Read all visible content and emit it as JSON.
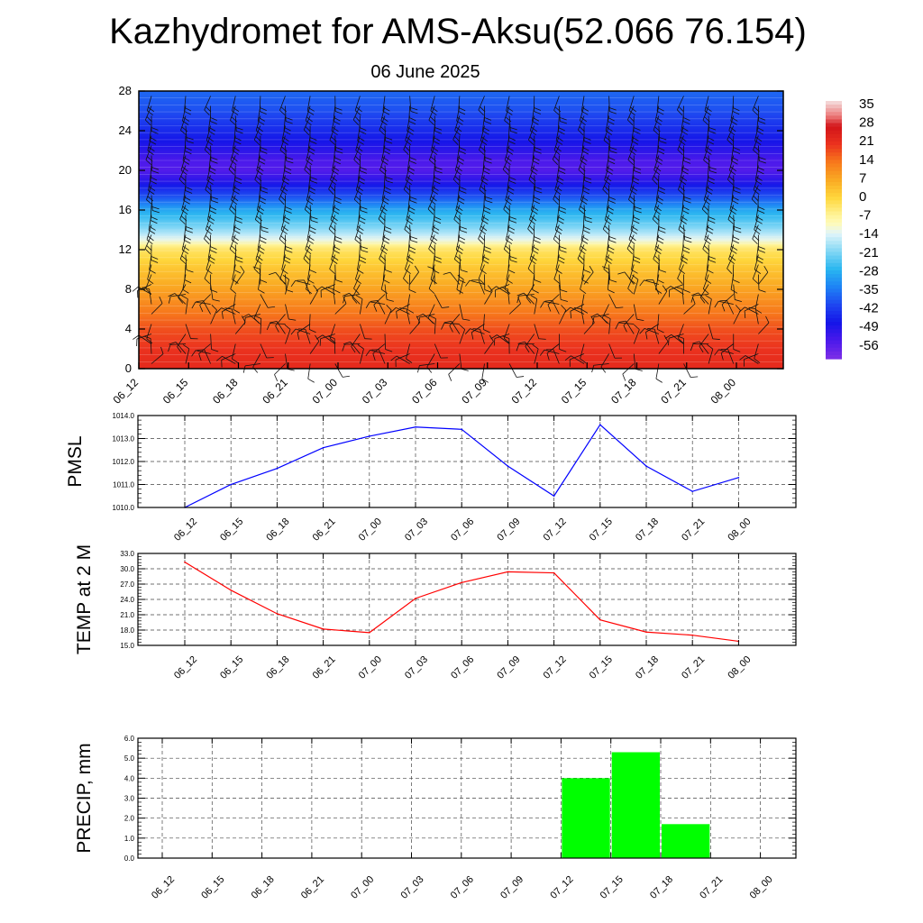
{
  "page": {
    "title": "Kazhydromet for AMS-Aksu(52.066 76.154)",
    "subtitle": "06 June 2025"
  },
  "chart_data": [
    {
      "type": "heatmap",
      "description": "Time-height temperature cross-section (filled contours) with wind barbs",
      "x_ticks": [
        "06_12",
        "06_15",
        "06_18",
        "06_21",
        "07_00",
        "07_03",
        "07_06",
        "07_09",
        "07_12",
        "07_15",
        "07_18",
        "07_21",
        "08_00"
      ],
      "y_ticks": [
        0,
        4,
        8,
        12,
        16,
        20,
        24,
        28
      ],
      "ylim": [
        0,
        28
      ],
      "colorbar_labels": [
        35,
        28,
        21,
        14,
        7,
        0,
        -7,
        -14,
        -21,
        -28,
        -35,
        -42,
        -49,
        -56
      ],
      "color_range": [
        -63,
        38
      ],
      "profile_levels": [
        0,
        2,
        4,
        6,
        8,
        10,
        12,
        12.5,
        13,
        14,
        16,
        17,
        18,
        19,
        20,
        21,
        22,
        24,
        26,
        28
      ],
      "profile_temps": [
        23,
        21,
        18,
        13,
        8,
        3,
        -3,
        -7,
        -13,
        -20,
        -30,
        -38,
        -45,
        -52,
        -57,
        -56,
        -52,
        -46,
        -41,
        -38
      ],
      "barb_levels": [
        0.5,
        1.5,
        2.5,
        3.5,
        4.5,
        5.5,
        6.5,
        7.5,
        8.5,
        9.5,
        10.5,
        11.5,
        12.5,
        13.5,
        14.5,
        15.5,
        16.5,
        17.5,
        18.5,
        19.5,
        20.5,
        21.5,
        22.5,
        23.5,
        24.5,
        25.5,
        26.5,
        27.5
      ],
      "colors": {
        "cold": "#7d2ee6",
        "mid_cold": "#1515e8",
        "cool": "#29b6f0",
        "neutral": "#fff49a",
        "warm": "#f7951c",
        "hot": "#e41e1e"
      }
    },
    {
      "type": "line",
      "ylabel": "PMSL",
      "x": [
        "06_12",
        "06_15",
        "06_18",
        "06_21",
        "07_00",
        "07_03",
        "07_06",
        "07_09",
        "07_12",
        "07_15",
        "07_18",
        "07_21",
        "08_00"
      ],
      "values": [
        1010.0,
        1011.0,
        1011.7,
        1012.6,
        1013.1,
        1013.5,
        1013.4,
        1011.8,
        1010.5,
        1013.6,
        1011.8,
        1010.7,
        1011.3
      ],
      "y_ticks": [
        "1010.0",
        "1011.0",
        "1012.0",
        "1013.0",
        "1014.0"
      ],
      "ylim": [
        1010.0,
        1014.0
      ],
      "color": "#0000ff",
      "grid": true
    },
    {
      "type": "line",
      "ylabel": "TEMP at 2 M",
      "x": [
        "06_12",
        "06_15",
        "06_18",
        "06_21",
        "07_00",
        "07_03",
        "07_06",
        "07_09",
        "07_12",
        "07_15",
        "07_18",
        "07_21",
        "08_00"
      ],
      "values": [
        31.3,
        25.8,
        21.2,
        18.2,
        17.5,
        24.2,
        27.3,
        29.4,
        29.2,
        20.0,
        17.6,
        17.0,
        15.8
      ],
      "y_ticks": [
        "15.0",
        "18.0",
        "21.0",
        "24.0",
        "27.0",
        "30.0",
        "33.0"
      ],
      "ylim": [
        15.0,
        33.0
      ],
      "color": "#ff0000",
      "grid": true
    },
    {
      "type": "bar",
      "ylabel": "PRECIP, mm",
      "x": [
        "06_12",
        "06_15",
        "06_18",
        "06_21",
        "07_00",
        "07_03",
        "07_06",
        "07_09",
        "07_12",
        "07_15",
        "07_18",
        "07_21",
        "08_00"
      ],
      "values": [
        0,
        0,
        0,
        0,
        0,
        0,
        0,
        0,
        0,
        4.0,
        5.3,
        1.7,
        0
      ],
      "y_ticks": [
        "0.0",
        "1.0",
        "2.0",
        "3.0",
        "4.0",
        "5.0",
        "6.0"
      ],
      "ylim": [
        0,
        6.0
      ],
      "color": "#00ff00",
      "grid": true
    }
  ]
}
